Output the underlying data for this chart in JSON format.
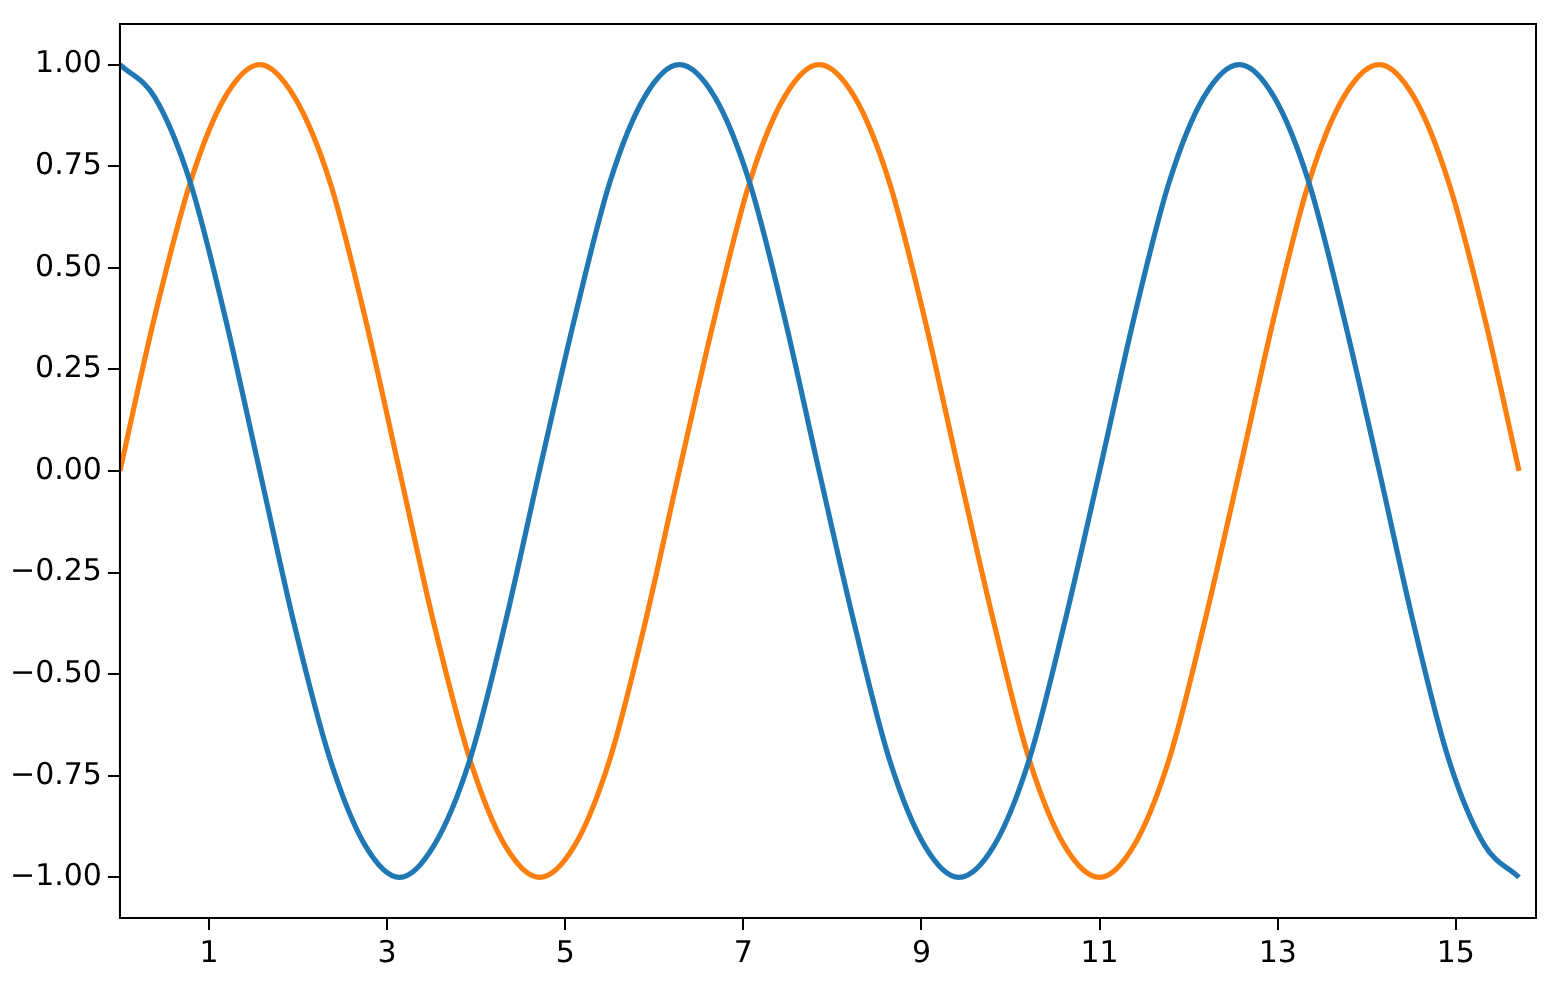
{
  "chart_data": {
    "type": "line",
    "x": [
      0,
      0.39,
      0.79,
      1.18,
      1.57,
      1.96,
      2.36,
      2.75,
      3.14,
      3.53,
      3.93,
      4.32,
      4.71,
      5.11,
      5.5,
      5.89,
      6.28,
      6.68,
      7.07,
      7.46,
      7.85,
      8.25,
      8.64,
      9.03,
      9.42,
      9.82,
      10.21,
      10.6,
      11.0,
      11.39,
      11.78,
      12.17,
      12.57,
      12.96,
      13.35,
      13.74,
      14.14,
      14.53,
      14.92,
      15.32,
      15.71
    ],
    "series": [
      {
        "color": "#1f77b4",
        "values": [
          1,
          0.92,
          0.71,
          0.38,
          0,
          -0.38,
          -0.71,
          -0.92,
          -1,
          -0.92,
          -0.71,
          -0.38,
          0,
          0.38,
          0.71,
          0.92,
          1,
          0.92,
          0.71,
          0.38,
          0,
          -0.38,
          -0.71,
          -0.92,
          -1,
          -0.92,
          -0.71,
          -0.38,
          0,
          0.38,
          0.71,
          0.92,
          1,
          0.92,
          0.71,
          0.38,
          0,
          -0.38,
          -0.71,
          -0.92,
          -1
        ]
      },
      {
        "color": "#ff7f0e",
        "values": [
          0,
          0.38,
          0.71,
          0.92,
          1,
          0.92,
          0.71,
          0.38,
          0,
          -0.38,
          -0.71,
          -0.92,
          -1,
          -0.92,
          -0.71,
          -0.38,
          0,
          0.38,
          0.71,
          0.92,
          1,
          0.92,
          0.71,
          0.38,
          0,
          -0.38,
          -0.71,
          -0.92,
          -1,
          -0.92,
          -0.71,
          -0.38,
          0,
          0.38,
          0.71,
          0.92,
          1,
          0.92,
          0.71,
          0.38,
          0
        ]
      }
    ],
    "xlim": [
      0,
      15.9
    ],
    "xticks": [
      1,
      3,
      5,
      7,
      9,
      11,
      13,
      15
    ],
    "ylim": [
      -1.1,
      1.1
    ],
    "yticks": [
      {
        "value": -1,
        "label": "−1.00"
      },
      {
        "value": -0.75,
        "label": "−0.75"
      },
      {
        "value": -0.5,
        "label": "−0.50"
      },
      {
        "value": -0.25,
        "label": "−0.25"
      },
      {
        "value": 0,
        "label": "0.00"
      },
      {
        "value": 0.25,
        "label": "0.25"
      },
      {
        "value": 0.5,
        "label": "0.50"
      },
      {
        "value": 0.75,
        "label": "0.75"
      },
      {
        "value": 1,
        "label": "1.00"
      }
    ],
    "grid": false,
    "legend": false,
    "marker": "none",
    "line_style": "solid"
  }
}
